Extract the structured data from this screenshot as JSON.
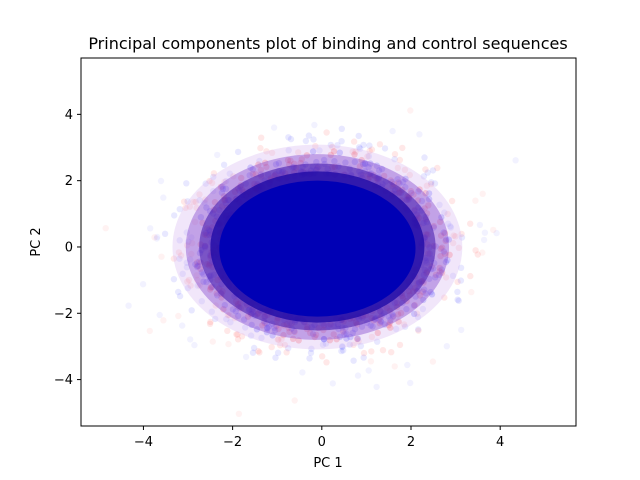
{
  "chart_data": {
    "type": "scatter",
    "title": "Principal components plot of binding and control sequences",
    "xlabel": "PC 1",
    "ylabel": "PC 2",
    "xlim": [
      -5.4,
      5.7
    ],
    "ylim": [
      -5.4,
      5.7
    ],
    "xticks": [
      -4,
      -2,
      0,
      2,
      4
    ],
    "yticks": [
      -4,
      -2,
      0,
      2,
      4
    ],
    "xtick_labels": [
      "−4",
      "−2",
      "0",
      "2",
      "4"
    ],
    "ytick_labels": [
      "−4",
      "−2",
      "0",
      "2",
      "4"
    ],
    "grid": false,
    "legend": "none",
    "series": [
      {
        "color": "#ff0000",
        "distribution": "2D Gaussian cloud, dense core",
        "center": [
          0,
          0
        ],
        "std": [
          1.2,
          1.2
        ],
        "opacity": 0.02
      },
      {
        "color": "#0000ff",
        "distribution": "2D Gaussian cloud, dense core",
        "center": [
          0,
          0
        ],
        "std": [
          1.2,
          1.2
        ],
        "opacity": 0.02
      }
    ],
    "core_color": "#0000b5"
  }
}
